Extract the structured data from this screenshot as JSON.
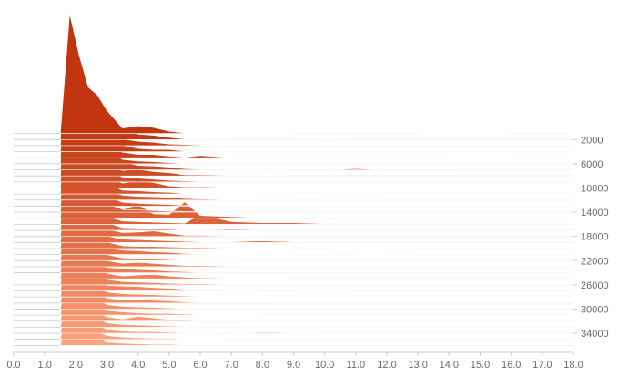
{
  "chart_data": {
    "type": "area",
    "subtype": "ridgeline",
    "x_axis": {
      "range": [
        0,
        18
      ],
      "tick_labels": [
        "0.0",
        "1.0",
        "2.0",
        "3.0",
        "4.0",
        "5.0",
        "6.0",
        "7.0",
        "8.0",
        "9.0",
        "10.0",
        "11.0",
        "12.0",
        "13.0",
        "14.0",
        "15.0",
        "16.0",
        "17.0",
        "18.0"
      ]
    },
    "y_axis": {
      "position": "right",
      "range": [
        0,
        37000
      ],
      "tick_labels": [
        "2000",
        "6000",
        "10000",
        "14000",
        "18000",
        "22000",
        "26000",
        "30000",
        "34000"
      ]
    },
    "grid": false,
    "legend": "none",
    "colors": {
      "top": "#c1360f",
      "bottom": "#ffa27a",
      "outline": "#ffffff",
      "baseline": "#cccccc",
      "tick_text": "#6b6b6b"
    },
    "series_count": 36,
    "row_step": 1000,
    "x_values": [
      1.5,
      1.8,
      2.1,
      2.4,
      2.7,
      3.0,
      3.5,
      4.0,
      4.5,
      5.0,
      5.5,
      6.0,
      7.0,
      8.0,
      9.0,
      10.0,
      11.0,
      12.0,
      13.0,
      14.0,
      15.0,
      16.0,
      17.0,
      18.0
    ],
    "series": [
      {
        "values": [
          0.6,
          220,
          145,
          85,
          70,
          42,
          10,
          14,
          11,
          4,
          1,
          1,
          1,
          1,
          0,
          0,
          0,
          0,
          0,
          1,
          1,
          0,
          0,
          0
        ]
      },
      {
        "values": [
          0.6,
          210,
          130,
          80,
          58,
          38,
          20,
          10,
          8,
          4,
          1,
          1,
          0,
          0,
          0,
          1,
          0,
          0,
          0,
          0,
          0,
          0,
          0,
          0
        ]
      },
      {
        "values": [
          0.6,
          200,
          125,
          82,
          60,
          30,
          12,
          8,
          6,
          3,
          2,
          1,
          1,
          0,
          0,
          0,
          0,
          0,
          0,
          0,
          0,
          0,
          0,
          0
        ]
      },
      {
        "values": [
          0.6,
          195,
          118,
          72,
          52,
          26,
          12,
          6,
          4,
          4,
          1,
          1,
          0,
          0,
          0,
          0,
          0,
          0,
          0,
          0,
          0,
          0,
          0,
          0
        ]
      },
      {
        "values": [
          0.6,
          188,
          112,
          64,
          45,
          22,
          10,
          6,
          6,
          3,
          1,
          4,
          0,
          0,
          0,
          0,
          0,
          0,
          0,
          0,
          1,
          0,
          0,
          0
        ]
      },
      {
        "values": [
          0.6,
          182,
          108,
          62,
          48,
          25,
          8,
          5,
          4,
          2,
          1,
          1,
          1,
          0,
          0,
          0,
          0,
          0,
          0,
          0,
          0,
          0,
          0,
          0
        ]
      },
      {
        "values": [
          0.6,
          176,
          106,
          60,
          44,
          26,
          15,
          8,
          7,
          5,
          2,
          1,
          1,
          1,
          0,
          0,
          2,
          0,
          0,
          0,
          1,
          1,
          1,
          0
        ]
      },
      {
        "values": [
          0.6,
          170,
          100,
          58,
          42,
          24,
          10,
          12,
          8,
          6,
          2,
          2,
          1,
          1,
          0,
          0,
          0,
          0,
          0,
          0,
          0,
          0,
          0,
          0
        ]
      },
      {
        "values": [
          0.6,
          165,
          96,
          55,
          40,
          22,
          9,
          7,
          5,
          3,
          2,
          1,
          1,
          0,
          0,
          1,
          0,
          0,
          0,
          0,
          0,
          0,
          0,
          0
        ]
      },
      {
        "values": [
          0.6,
          160,
          95,
          54,
          38,
          20,
          9,
          14,
          10,
          4,
          2,
          2,
          1,
          0,
          0,
          0,
          0,
          0,
          0,
          0,
          0,
          0,
          0,
          0
        ]
      },
      {
        "values": [
          0.6,
          155,
          92,
          52,
          36,
          20,
          7,
          6,
          4,
          3,
          1,
          1,
          1,
          1,
          0,
          0,
          1,
          0,
          0,
          0,
          0,
          0,
          0,
          0
        ]
      },
      {
        "values": [
          0.6,
          150,
          90,
          50,
          35,
          18,
          9,
          7,
          6,
          5,
          3,
          2,
          1,
          0,
          0,
          0,
          0,
          0,
          0,
          0,
          0,
          0,
          0,
          0
        ]
      },
      {
        "values": [
          0.6,
          146,
          88,
          48,
          34,
          18,
          7,
          5,
          4,
          3,
          1,
          1,
          0,
          0,
          0,
          0,
          0,
          0,
          0,
          0,
          0,
          0,
          0,
          0
        ]
      },
      {
        "values": [
          0.6,
          140,
          86,
          46,
          32,
          16,
          5,
          4,
          3,
          2,
          1,
          1,
          0,
          0,
          0,
          0,
          0,
          0,
          0,
          0,
          0,
          0,
          0,
          0
        ]
      },
      {
        "values": [
          0.6,
          136,
          84,
          45,
          30,
          14,
          16,
          25,
          8,
          7,
          30,
          5,
          3,
          1,
          1,
          0,
          0,
          0,
          0,
          0,
          0,
          0,
          0,
          0
        ]
      },
      {
        "values": [
          0.6,
          132,
          80,
          44,
          30,
          15,
          6,
          5,
          4,
          3,
          2,
          18,
          5,
          3,
          3,
          1,
          0,
          0,
          0,
          0,
          0,
          0,
          0,
          0
        ]
      },
      {
        "values": [
          0.6,
          128,
          78,
          42,
          28,
          14,
          5,
          4,
          3,
          2,
          1,
          1,
          2,
          1,
          0,
          0,
          0,
          0,
          0,
          0,
          0,
          0,
          0,
          0
        ]
      },
      {
        "values": [
          0.6,
          124,
          76,
          42,
          28,
          13,
          7,
          8,
          10,
          6,
          2,
          2,
          1,
          0,
          0,
          0,
          0,
          0,
          0,
          0,
          0,
          0,
          0,
          0
        ]
      },
      {
        "values": [
          0.6,
          120,
          74,
          40,
          26,
          12,
          6,
          5,
          4,
          3,
          2,
          1,
          1,
          3,
          1,
          0,
          0,
          0,
          0,
          0,
          0,
          0,
          0,
          0
        ]
      },
      {
        "values": [
          0.6,
          118,
          72,
          40,
          26,
          12,
          5,
          4,
          4,
          3,
          2,
          2,
          1,
          1,
          0,
          0,
          1,
          0,
          0,
          0,
          0,
          0,
          0,
          0
        ]
      },
      {
        "values": [
          0.6,
          114,
          70,
          38,
          24,
          12,
          8,
          7,
          5,
          4,
          2,
          1,
          1,
          1,
          0,
          0,
          0,
          1,
          0,
          0,
          0,
          0,
          0,
          0
        ]
      },
      {
        "values": [
          0.6,
          110,
          68,
          36,
          24,
          11,
          5,
          4,
          3,
          2,
          1,
          1,
          1,
          0,
          0,
          0,
          0,
          0,
          0,
          0,
          0,
          0,
          0,
          0
        ]
      },
      {
        "values": [
          0.6,
          106,
          66,
          36,
          22,
          11,
          6,
          8,
          6,
          4,
          2,
          2,
          1,
          0,
          0,
          0,
          0,
          0,
          0,
          0,
          0,
          0,
          0,
          0
        ]
      },
      {
        "values": [
          0.6,
          102,
          64,
          34,
          22,
          10,
          8,
          6,
          5,
          3,
          2,
          1,
          1,
          0,
          0,
          0,
          0,
          0,
          0,
          0,
          0,
          0,
          0,
          0
        ]
      },
      {
        "values": [
          0.6,
          98,
          62,
          34,
          22,
          10,
          5,
          7,
          8,
          5,
          3,
          2,
          1,
          1,
          0,
          0,
          0,
          0,
          0,
          0,
          0,
          0,
          0,
          0
        ]
      },
      {
        "values": [
          0.6,
          95,
          60,
          32,
          20,
          10,
          6,
          5,
          4,
          3,
          2,
          2,
          1,
          1,
          0,
          0,
          0,
          0,
          0,
          0,
          0,
          0,
          0,
          0
        ]
      },
      {
        "values": [
          0.6,
          92,
          58,
          32,
          20,
          10,
          9,
          8,
          6,
          5,
          3,
          2,
          1,
          0,
          0,
          1,
          0,
          0,
          0,
          0,
          0,
          0,
          0,
          0
        ]
      },
      {
        "values": [
          0.6,
          88,
          56,
          30,
          20,
          9,
          6,
          5,
          4,
          3,
          2,
          1,
          1,
          1,
          0,
          0,
          0,
          0,
          0,
          0,
          0,
          0,
          0,
          0
        ]
      },
      {
        "values": [
          0.6,
          85,
          54,
          30,
          18,
          9,
          6,
          6,
          5,
          4,
          2,
          1,
          1,
          0,
          0,
          0,
          0,
          0,
          0,
          0,
          0,
          0,
          0,
          0
        ]
      },
      {
        "values": [
          0.6,
          82,
          52,
          28,
          18,
          8,
          5,
          4,
          3,
          2,
          1,
          1,
          0,
          0,
          0,
          0,
          0,
          0,
          0,
          0,
          0,
          0,
          0,
          0
        ]
      },
      {
        "values": [
          0.6,
          80,
          50,
          28,
          18,
          8,
          6,
          4,
          3,
          3,
          2,
          1,
          1,
          0,
          0,
          0,
          0,
          0,
          0,
          0,
          0,
          0,
          0,
          0
        ]
      },
      {
        "values": [
          0.6,
          78,
          48,
          26,
          16,
          8,
          4,
          9,
          6,
          3,
          2,
          1,
          1,
          0,
          0,
          0,
          0,
          0,
          0,
          0,
          0,
          0,
          0,
          0
        ]
      },
      {
        "values": [
          0.6,
          76,
          46,
          26,
          16,
          8,
          5,
          4,
          3,
          2,
          1,
          1,
          0,
          0,
          0,
          0,
          0,
          0,
          0,
          0,
          0,
          0,
          0,
          0
        ]
      },
      {
        "values": [
          0.6,
          74,
          45,
          24,
          16,
          7,
          4,
          3,
          3,
          2,
          1,
          1,
          0,
          2,
          1,
          0,
          0,
          0,
          0,
          0,
          0,
          0,
          0,
          0
        ]
      },
      {
        "values": [
          0.6,
          72,
          44,
          24,
          14,
          7,
          4,
          3,
          2,
          2,
          1,
          1,
          0,
          0,
          0,
          0,
          0,
          0,
          0,
          0,
          0,
          0,
          0,
          0
        ]
      },
      {
        "values": [
          0.6,
          70,
          42,
          22,
          14,
          6,
          4,
          3,
          2,
          2,
          1,
          0,
          0,
          0,
          0,
          0,
          0,
          0,
          0,
          0,
          0,
          0,
          0,
          0
        ]
      }
    ]
  }
}
